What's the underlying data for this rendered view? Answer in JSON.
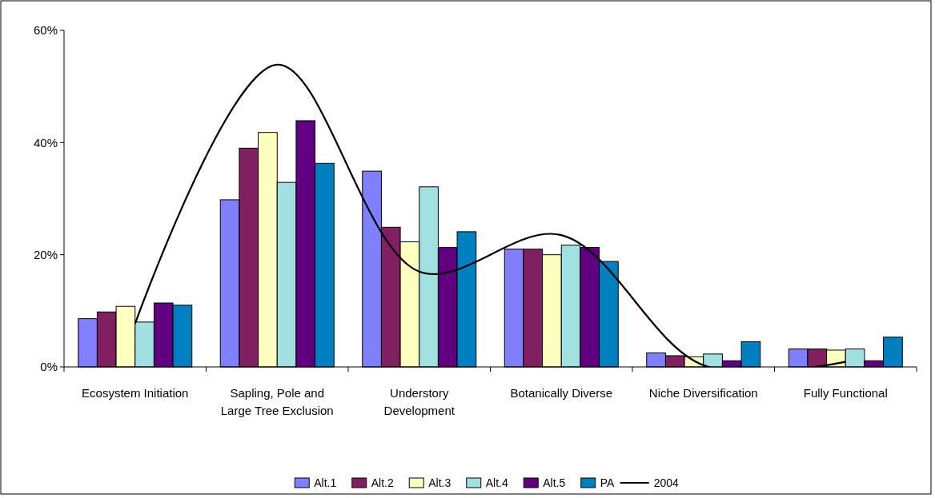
{
  "chart_data": {
    "type": "bar",
    "categories": [
      "Ecosystem Initiation",
      "Sapling, Pole and Large Tree Exclusion",
      "Understory Development",
      "Botanically Diverse",
      "Niche Diversification",
      "Fully Functional"
    ],
    "series": [
      {
        "name": "Alt.1",
        "color": "#8080ff",
        "values": [
          8.6,
          29.8,
          34.9,
          21.0,
          2.5,
          3.2
        ]
      },
      {
        "name": "Alt.2",
        "color": "#802060",
        "values": [
          9.8,
          39.0,
          24.9,
          21.0,
          2.0,
          3.2
        ]
      },
      {
        "name": "Alt.3",
        "color": "#ffffc0",
        "values": [
          10.8,
          41.8,
          22.3,
          20.0,
          1.8,
          3.0
        ]
      },
      {
        "name": "Alt.4",
        "color": "#a0e0e0",
        "values": [
          8.0,
          32.9,
          32.1,
          21.7,
          2.3,
          3.2
        ]
      },
      {
        "name": "Alt.5",
        "color": "#600080",
        "values": [
          11.4,
          43.9,
          21.3,
          21.3,
          1.1,
          1.1
        ]
      },
      {
        "name": "PA",
        "color": "#0080c0",
        "values": [
          11.0,
          36.3,
          24.1,
          18.8,
          4.5,
          5.3
        ]
      },
      {
        "name": "2004",
        "type": "line",
        "color": "#000000",
        "values": [
          7.7,
          53.9,
          17,
          23.5,
          0.3,
          0.9
        ]
      }
    ],
    "ylim": [
      0,
      60
    ],
    "yticks": [
      {
        "value": 0,
        "label": "0%"
      },
      {
        "value": 20,
        "label": "20%"
      },
      {
        "value": 40,
        "label": "40%"
      },
      {
        "value": 60,
        "label": "60%"
      }
    ],
    "legend": "bottom",
    "marker": "none",
    "line_style": "solid"
  }
}
